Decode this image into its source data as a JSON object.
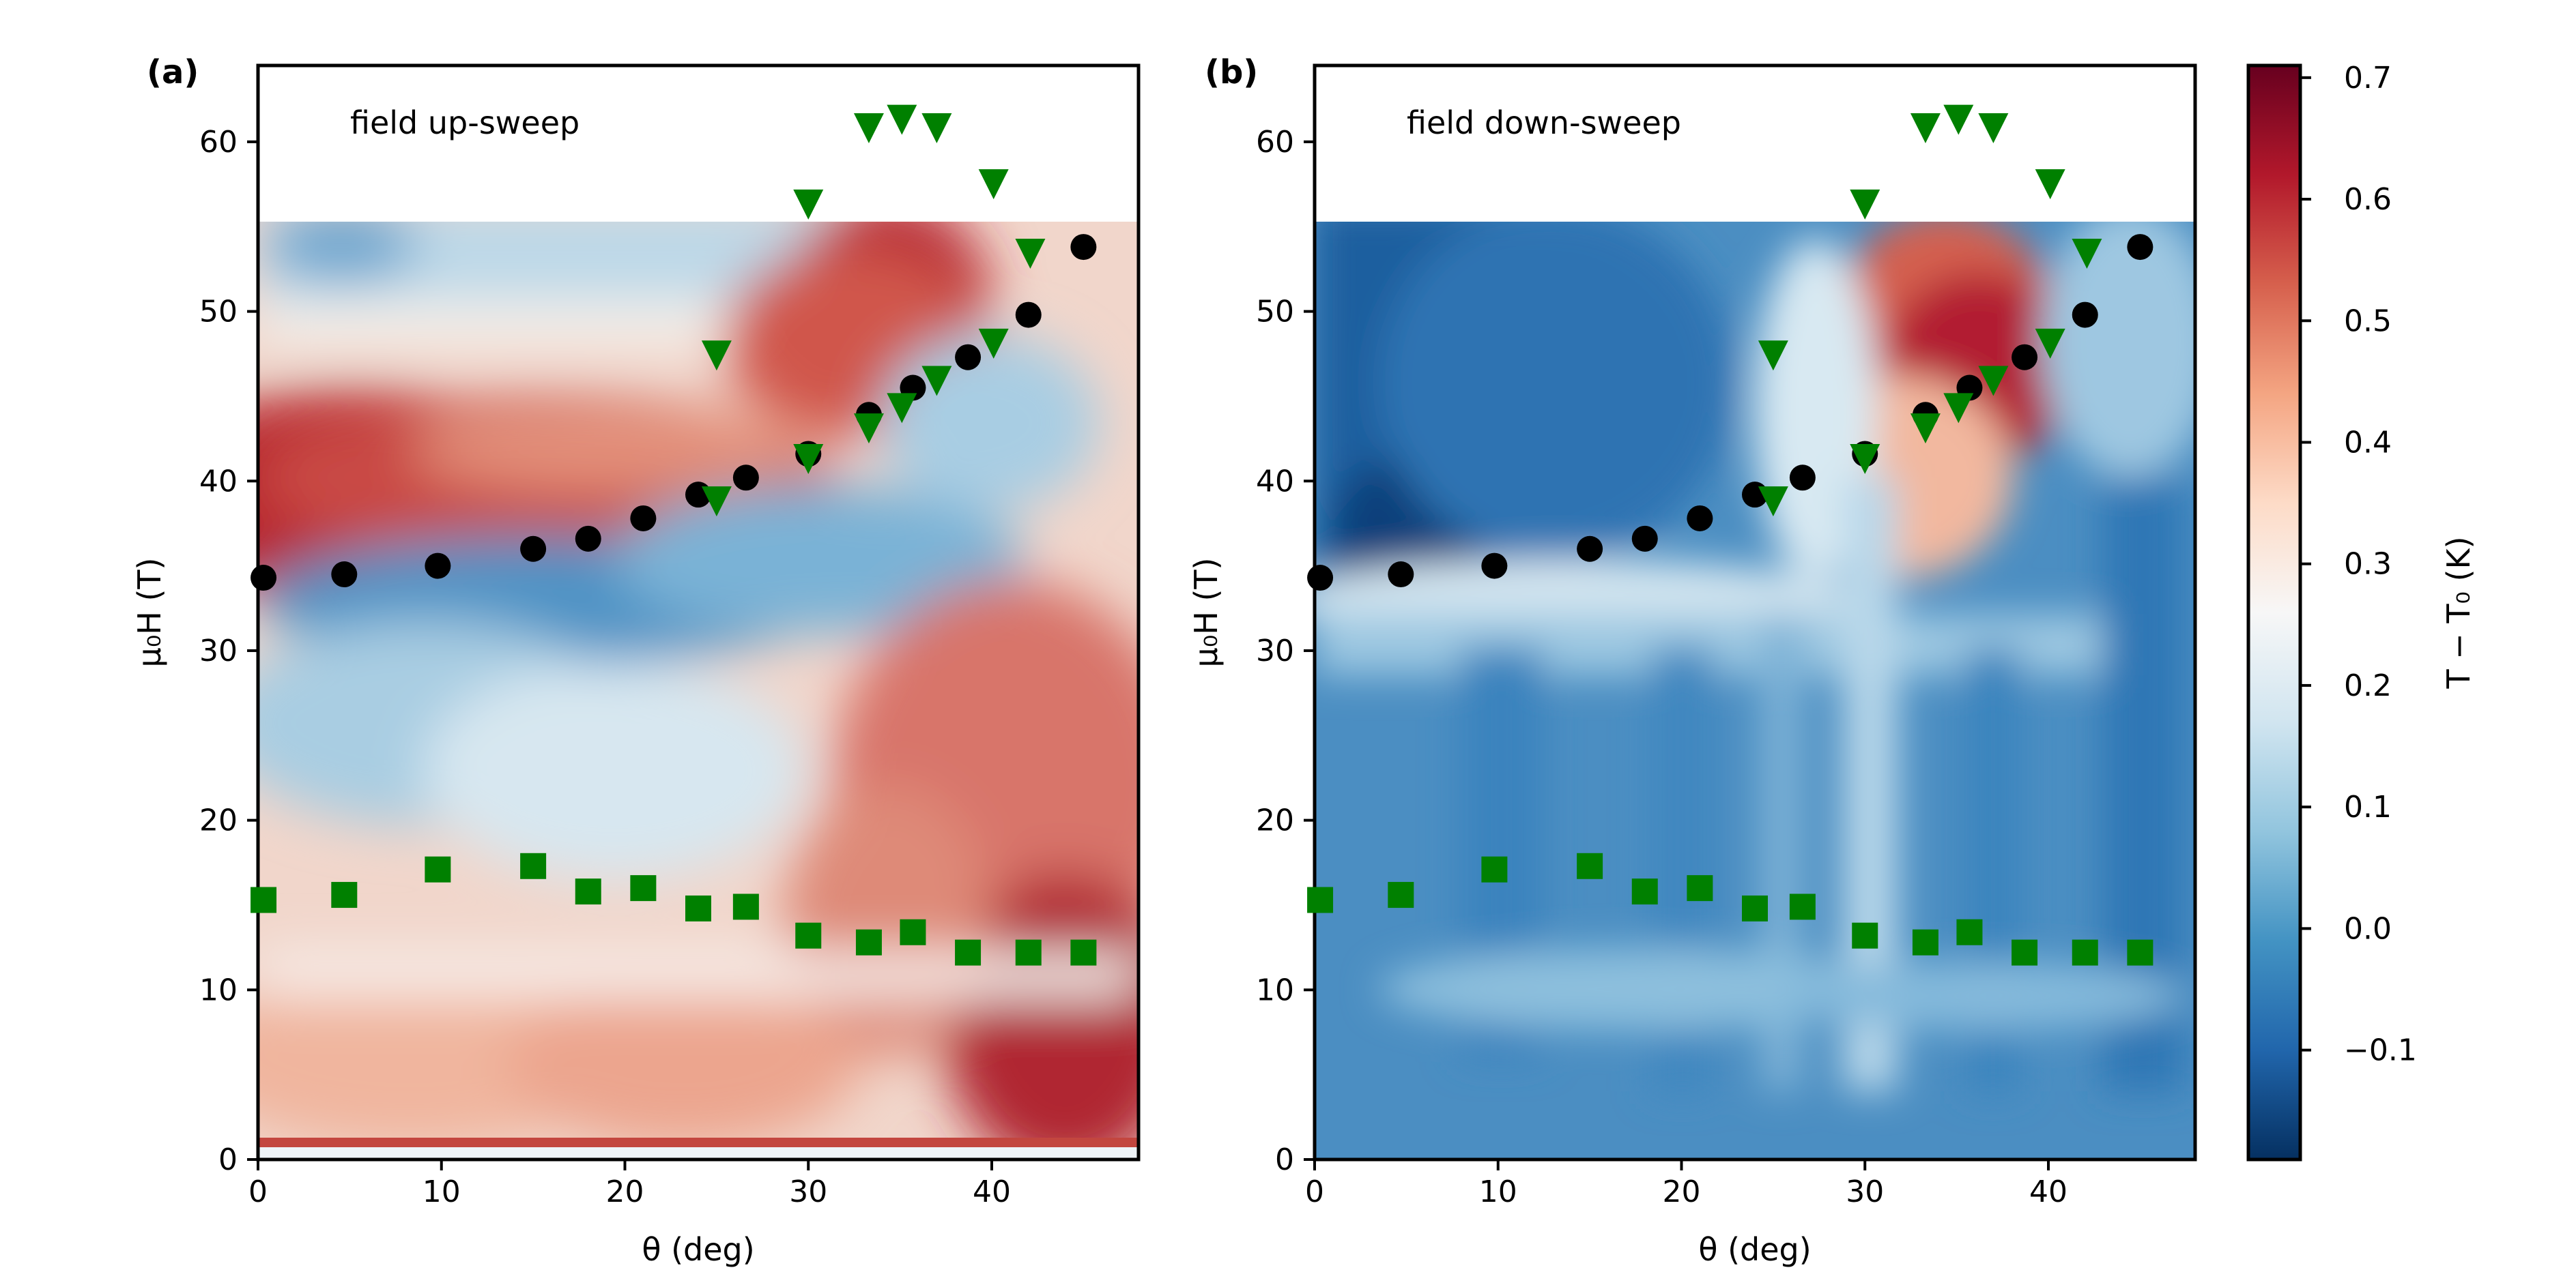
{
  "chart_data": [
    {
      "type": "heatmap",
      "panel_label": "(a)",
      "annotation": "field up-sweep",
      "title": "",
      "xlabel": "θ (deg)",
      "ylabel": "μ₀H (T)",
      "xlim": [
        0,
        48
      ],
      "ylim": [
        0,
        64.5
      ],
      "xticks": [
        0,
        10,
        20,
        30,
        40
      ],
      "yticks": [
        0,
        10,
        20,
        30,
        40,
        50,
        60
      ],
      "data_top": 55,
      "grid": false,
      "series": [
        {
          "marker": "circle",
          "color": "#000000",
          "points": [
            [
              0.3,
              34.3
            ],
            [
              4.7,
              34.5
            ],
            [
              9.8,
              35.0
            ],
            [
              15,
              36.0
            ],
            [
              18,
              36.6
            ],
            [
              21,
              37.8
            ],
            [
              24,
              39.2
            ],
            [
              26.6,
              40.2
            ],
            [
              30,
              41.6
            ],
            [
              33.3,
              43.9
            ],
            [
              35.7,
              45.5
            ],
            [
              38.7,
              47.3
            ],
            [
              42,
              49.8
            ],
            [
              45,
              53.8
            ]
          ]
        },
        {
          "marker": "triangle-down",
          "color": "#008000",
          "points": [
            [
              25,
              47.4
            ],
            [
              30,
              56.3
            ],
            [
              33.3,
              60.8
            ],
            [
              35.1,
              61.3
            ],
            [
              37,
              60.8
            ],
            [
              40.1,
              57.5
            ],
            [
              42.1,
              53.4
            ],
            [
              25,
              38.8
            ],
            [
              30,
              41.3
            ],
            [
              33.3,
              43.1
            ],
            [
              35.1,
              44.3
            ],
            [
              37,
              45.9
            ],
            [
              40.1,
              48.1
            ]
          ]
        },
        {
          "marker": "square",
          "color": "#008000",
          "points": [
            [
              0.3,
              15.3
            ],
            [
              4.7,
              15.6
            ],
            [
              9.8,
              17.1
            ],
            [
              15,
              17.3
            ],
            [
              18,
              15.8
            ],
            [
              21,
              16.0
            ],
            [
              24,
              14.8
            ],
            [
              26.6,
              14.9
            ],
            [
              30,
              13.2
            ],
            [
              33.3,
              12.8
            ],
            [
              35.7,
              13.4
            ],
            [
              38.7,
              12.2
            ],
            [
              42,
              12.2
            ],
            [
              45,
              12.2
            ]
          ]
        }
      ]
    },
    {
      "type": "heatmap",
      "panel_label": "(b)",
      "annotation": "field down-sweep",
      "title": "",
      "xlabel": "θ (deg)",
      "ylabel": "μ₀H (T)",
      "xlim": [
        0,
        48
      ],
      "ylim": [
        0,
        64.5
      ],
      "xticks": [
        0,
        10,
        20,
        30,
        40
      ],
      "yticks": [
        0,
        10,
        20,
        30,
        40,
        50,
        60
      ],
      "data_top": 55,
      "grid": false,
      "series": [
        {
          "marker": "circle",
          "color": "#000000",
          "points": [
            [
              0.3,
              34.3
            ],
            [
              4.7,
              34.5
            ],
            [
              9.8,
              35.0
            ],
            [
              15,
              36.0
            ],
            [
              18,
              36.6
            ],
            [
              21,
              37.8
            ],
            [
              24,
              39.2
            ],
            [
              26.6,
              40.2
            ],
            [
              30,
              41.6
            ],
            [
              33.3,
              43.9
            ],
            [
              35.7,
              45.5
            ],
            [
              38.7,
              47.3
            ],
            [
              42,
              49.8
            ],
            [
              45,
              53.8
            ]
          ]
        },
        {
          "marker": "triangle-down",
          "color": "#008000",
          "points": [
            [
              25,
              47.4
            ],
            [
              30,
              56.3
            ],
            [
              33.3,
              60.8
            ],
            [
              35.1,
              61.3
            ],
            [
              37,
              60.8
            ],
            [
              40.1,
              57.5
            ],
            [
              42.1,
              53.4
            ],
            [
              25,
              38.8
            ],
            [
              30,
              41.3
            ],
            [
              33.3,
              43.1
            ],
            [
              35.1,
              44.3
            ],
            [
              37,
              45.9
            ],
            [
              40.1,
              48.1
            ]
          ]
        },
        {
          "marker": "square",
          "color": "#008000",
          "points": [
            [
              0.3,
              15.3
            ],
            [
              4.7,
              15.6
            ],
            [
              9.8,
              17.1
            ],
            [
              15,
              17.3
            ],
            [
              18,
              15.8
            ],
            [
              21,
              16.0
            ],
            [
              24,
              14.8
            ],
            [
              26.6,
              14.9
            ],
            [
              30,
              13.2
            ],
            [
              33.3,
              12.8
            ],
            [
              35.7,
              13.4
            ],
            [
              38.7,
              12.2
            ],
            [
              42,
              12.2
            ],
            [
              45,
              12.2
            ]
          ]
        }
      ]
    }
  ],
  "colorbar": {
    "label": "T − T₀ (K)",
    "range": [
      -0.19,
      0.71
    ],
    "ticks": [
      {
        "value": -0.1,
        "label": "−0.1"
      },
      {
        "value": 0.0,
        "label": "0.0"
      },
      {
        "value": 0.1,
        "label": "0.1"
      },
      {
        "value": 0.2,
        "label": "0.2"
      },
      {
        "value": 0.3,
        "label": "0.3"
      },
      {
        "value": 0.4,
        "label": "0.4"
      },
      {
        "value": 0.5,
        "label": "0.5"
      },
      {
        "value": 0.6,
        "label": "0.6"
      },
      {
        "value": 0.7,
        "label": "0.7"
      }
    ],
    "colormap": "RdBu_r",
    "stops": [
      "#053061",
      "#2166ac",
      "#4393c3",
      "#92c5de",
      "#d1e5f0",
      "#f7f7f7",
      "#fddbc7",
      "#f4a582",
      "#d6604d",
      "#b2182b",
      "#67001f"
    ]
  }
}
